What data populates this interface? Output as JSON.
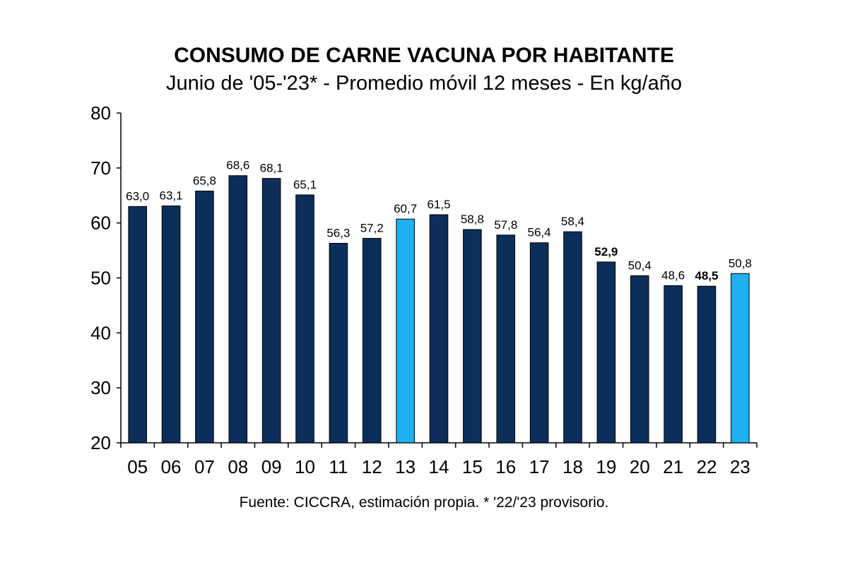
{
  "chart_data": {
    "type": "bar",
    "title": "CONSUMO DE CARNE VACUNA POR HABITANTE",
    "subtitle": "Junio de '05-'23* - Promedio móvil 12 meses -  En kg/año",
    "source": "Fuente: CICCRA, estimación propia. * '22/'23 provisorio.",
    "categories": [
      "05",
      "06",
      "07",
      "08",
      "09",
      "10",
      "11",
      "12",
      "13",
      "14",
      "15",
      "16",
      "17",
      "18",
      "19",
      "20",
      "21",
      "22",
      "23"
    ],
    "values": [
      63.0,
      63.1,
      65.8,
      68.6,
      68.1,
      65.1,
      56.3,
      57.2,
      60.7,
      61.5,
      58.8,
      57.8,
      56.4,
      58.4,
      52.9,
      50.4,
      48.6,
      48.5,
      50.8
    ],
    "value_labels": [
      "63,0",
      "63,1",
      "65,8",
      "68,6",
      "68,1",
      "65,1",
      "56,3",
      "57,2",
      "60,7",
      "61,5",
      "58,8",
      "57,8",
      "56,4",
      "58,4",
      "52,9",
      "50,4",
      "48,6",
      "48,5",
      "50,8"
    ],
    "bold_labels": [
      "19",
      "22"
    ],
    "highlight_categories": [
      "13",
      "23"
    ],
    "colors": {
      "default": "#0b2f5a",
      "highlight": "#1eb0f0",
      "outline": "#000000"
    },
    "ylim": [
      20,
      80
    ],
    "yticks": [
      20,
      30,
      40,
      50,
      60,
      70,
      80
    ],
    "grid": false
  }
}
